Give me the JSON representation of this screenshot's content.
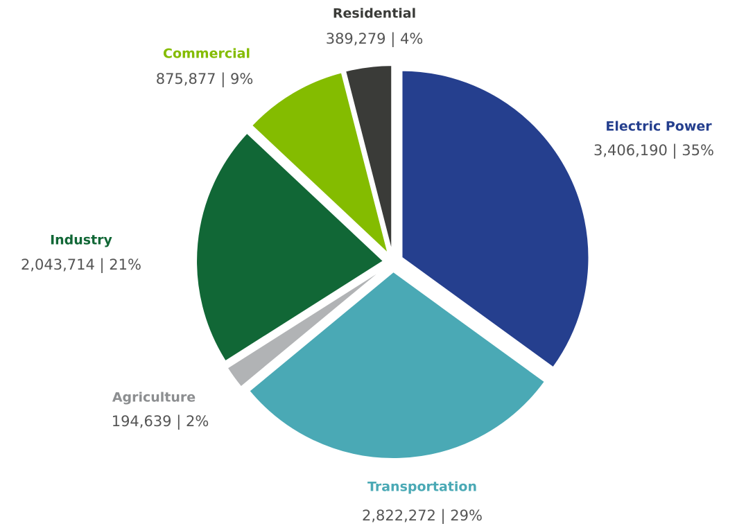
{
  "chart_data": {
    "type": "pie",
    "categories": [
      "Electric Power",
      "Transportation",
      "Agriculture",
      "Industry",
      "Commercial",
      "Residential"
    ],
    "values": [
      3406190,
      2822272,
      194639,
      2043714,
      875877,
      389279
    ],
    "value_labels": [
      "3,406,190 | 35%",
      "2,822,272 | 29%",
      "194,639 | 2%",
      "2,043,714 | 21%",
      "875,877 | 9%",
      "389,279 | 4%"
    ],
    "colors": [
      "#253f8e",
      "#4aa9b5",
      "#b1b3b5",
      "#116736",
      "#84bc00",
      "#3a3b38"
    ]
  }
}
